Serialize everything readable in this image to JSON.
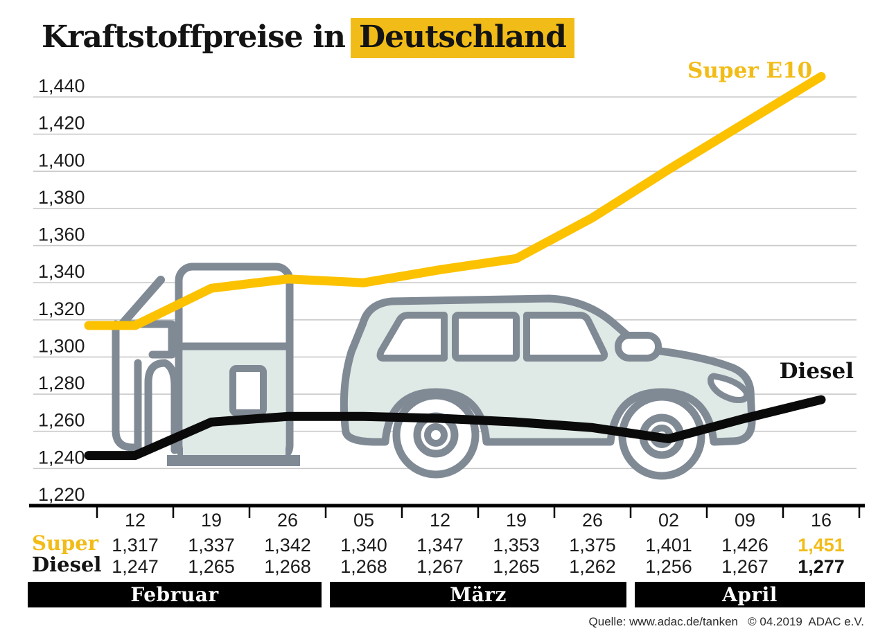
{
  "title": {
    "prefix": "Kraftstoffpreise in",
    "highlight": "Deutschland"
  },
  "series_labels": {
    "super": "Super E10",
    "diesel": "Diesel"
  },
  "colors": {
    "accent": "#F2BC18",
    "line_yellow": "#FCC200",
    "line_black": "#0A0A0A",
    "grid": "#C9C9C9",
    "axis": "#000000",
    "illustration_stroke": "#808A95",
    "illustration_fill": "#DFE9E6",
    "band_bg": "#000000",
    "band_text": "#FFFFFF",
    "tick_label": "#1C1C1C"
  },
  "chart_data": {
    "type": "line",
    "title": "Kraftstoffpreise in Deutschland",
    "x_dates": [
      "12",
      "19",
      "26",
      "05",
      "12",
      "19",
      "26",
      "02",
      "09",
      "16"
    ],
    "months": [
      {
        "label": "Februar",
        "dates": 3
      },
      {
        "label": "März",
        "dates": 4
      },
      {
        "label": "April",
        "dates": 3
      }
    ],
    "y_ticks": [
      {
        "v": 1440,
        "label": "1,440"
      },
      {
        "v": 1420,
        "label": "1,420"
      },
      {
        "v": 1400,
        "label": "1,400"
      },
      {
        "v": 1380,
        "label": "1,380"
      },
      {
        "v": 1360,
        "label": "1,360"
      },
      {
        "v": 1340,
        "label": "1,340"
      },
      {
        "v": 1320,
        "label": "1,320"
      },
      {
        "v": 1300,
        "label": "1,300"
      },
      {
        "v": 1280,
        "label": "1,280"
      },
      {
        "v": 1260,
        "label": "1,260"
      },
      {
        "v": 1240,
        "label": "1,240"
      },
      {
        "v": 1220,
        "label": "1,220"
      }
    ],
    "ylim": [
      1220,
      1455
    ],
    "grid": true,
    "legend_position": "on-line-labels",
    "series": [
      {
        "name": "Super E10",
        "color": "#FCC200",
        "values": [
          1317,
          1337,
          1342,
          1340,
          1347,
          1353,
          1375,
          1401,
          1426,
          1451
        ]
      },
      {
        "name": "Diesel",
        "color": "#0A0A0A",
        "values": [
          1247,
          1265,
          1268,
          1268,
          1267,
          1265,
          1262,
          1256,
          1267,
          1277
        ]
      }
    ]
  },
  "table": {
    "rows": [
      {
        "label": "Super",
        "label_color": "#F2BC18",
        "last_color": "#F2BC18",
        "values": [
          "1,317",
          "1,337",
          "1,342",
          "1,340",
          "1,347",
          "1,353",
          "1,375",
          "1,401",
          "1,426",
          "1,451"
        ]
      },
      {
        "label": "Diesel",
        "label_color": "#141414",
        "last_color": "#141414",
        "values": [
          "1,247",
          "1,265",
          "1,268",
          "1,268",
          "1,267",
          "1,265",
          "1,262",
          "1,256",
          "1,267",
          "1,277"
        ]
      }
    ]
  },
  "source": "Quelle: www.adac.de/tanken   © 04.2019  ADAC e.V."
}
